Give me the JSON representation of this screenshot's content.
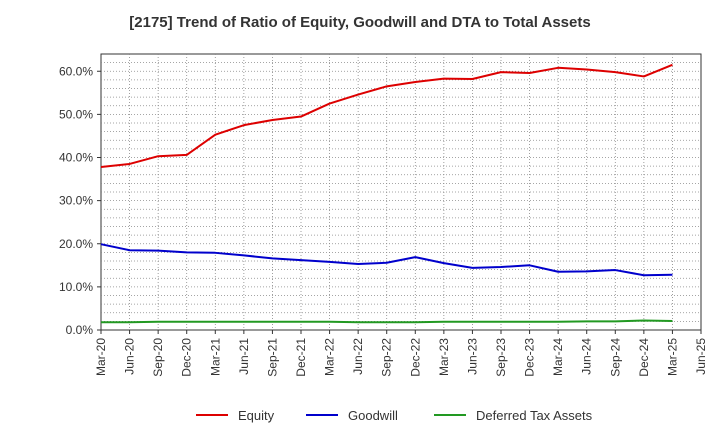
{
  "chart_data": {
    "type": "line",
    "title": "[2175]  Trend of Ratio of Equity, Goodwill and DTA to Total Assets",
    "xlabel": "",
    "ylabel": "",
    "ylim": [
      0,
      64
    ],
    "yticks": [
      0,
      10,
      20,
      30,
      40,
      50,
      60
    ],
    "ytick_labels": [
      "0.0%",
      "10.0%",
      "20.0%",
      "30.0%",
      "40.0%",
      "50.0%",
      "60.0%"
    ],
    "grid": true,
    "legend_position": "bottom",
    "categories": [
      "Mar-20",
      "Jun-20",
      "Sep-20",
      "Dec-20",
      "Mar-21",
      "Jun-21",
      "Sep-21",
      "Dec-21",
      "Mar-22",
      "Jun-22",
      "Sep-22",
      "Dec-22",
      "Mar-23",
      "Jun-23",
      "Sep-23",
      "Dec-23",
      "Mar-24",
      "Jun-24",
      "Sep-24",
      "Dec-24",
      "Mar-25",
      "Jun-25"
    ],
    "series": [
      {
        "name": "Equity",
        "color": "#dd0000",
        "values": [
          37.8,
          38.5,
          40.3,
          40.6,
          45.3,
          47.5,
          48.7,
          49.5,
          52.5,
          54.6,
          56.5,
          57.5,
          58.3,
          58.2,
          59.8,
          59.6,
          60.8,
          60.4,
          59.8,
          58.8,
          61.5,
          null
        ]
      },
      {
        "name": "Goodwill",
        "color": "#0000cc",
        "values": [
          19.9,
          18.5,
          18.4,
          18.0,
          17.9,
          17.3,
          16.6,
          16.2,
          15.8,
          15.3,
          15.6,
          16.9,
          15.5,
          14.4,
          14.6,
          15.0,
          13.5,
          13.6,
          13.9,
          12.7,
          12.8,
          null
        ]
      },
      {
        "name": "Deferred Tax Assets",
        "color": "#229922",
        "values": [
          1.8,
          1.8,
          1.9,
          1.9,
          1.9,
          1.9,
          1.9,
          1.9,
          1.9,
          1.8,
          1.8,
          1.8,
          1.9,
          1.9,
          1.9,
          1.9,
          1.9,
          2.0,
          2.0,
          2.2,
          2.1,
          null
        ]
      }
    ]
  }
}
